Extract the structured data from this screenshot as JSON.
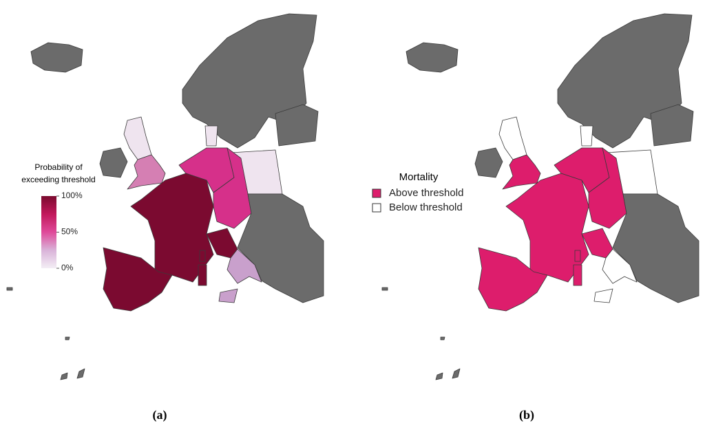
{
  "panels": [
    {
      "label": "(a)",
      "legend": {
        "title": [
          "Probability of",
          "exceeding threshold"
        ],
        "ticks": [
          {
            "value": 100,
            "label": "100%"
          },
          {
            "value": 50,
            "label": "50%"
          },
          {
            "value": 0,
            "label": "0%"
          }
        ],
        "colors": [
          "#f3eef5",
          "#d9b3d9",
          "#df4a9a",
          "#c2185b",
          "#7a0a2e"
        ]
      }
    },
    {
      "label": "(b)",
      "legend": {
        "title": "Mortality",
        "items": [
          {
            "name": "Above threshold",
            "color": "#dd1d6c"
          },
          {
            "name": "Below threshold",
            "color": "#ffffff"
          }
        ]
      }
    }
  ]
}
